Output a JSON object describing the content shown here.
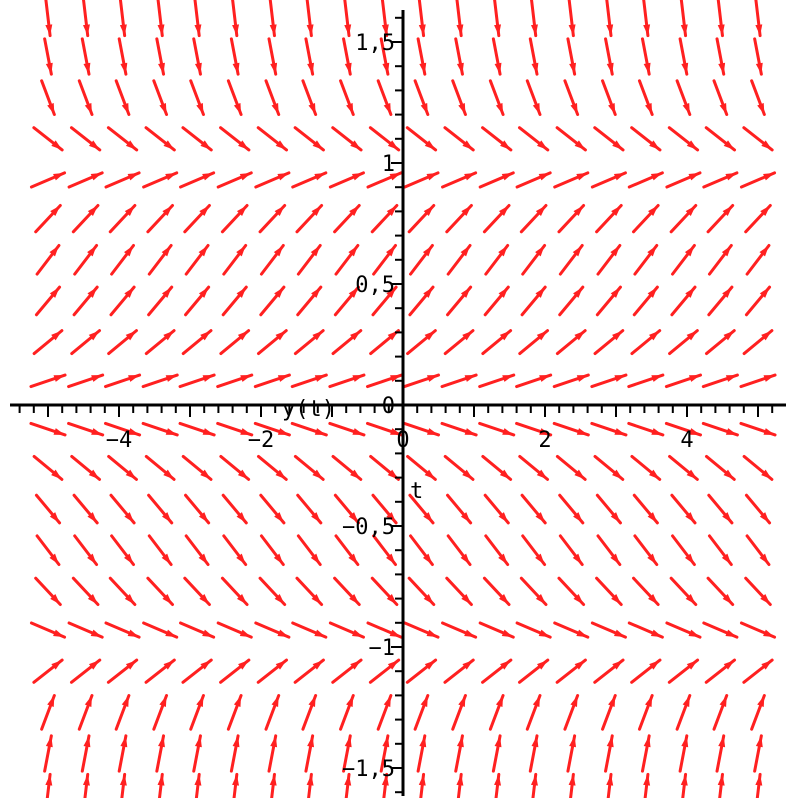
{
  "chart_data": {
    "type": "vector-field",
    "title": "",
    "xlabel": "t",
    "ylabel": "y(t)",
    "xlim": [
      -5.6,
      5.3
    ],
    "ylim": [
      -1.75,
      1.7
    ],
    "x_ticks": [
      {
        "value": -4,
        "label": "−4"
      },
      {
        "value": -2,
        "label": "−2"
      },
      {
        "value": 0,
        "label": "0"
      },
      {
        "value": 2,
        "label": "2"
      },
      {
        "value": 4,
        "label": "4"
      }
    ],
    "y_ticks": [
      {
        "value": 1.5,
        "label": "1,5"
      },
      {
        "value": 1,
        "label": "1"
      },
      {
        "value": 0.5,
        "label": "0,5"
      },
      {
        "value": 0,
        "label": "0"
      },
      {
        "value": -0.5,
        "label": "−0,5"
      },
      {
        "value": -1,
        "label": "−1"
      },
      {
        "value": -1.5,
        "label": "−1,5"
      }
    ],
    "grid": false,
    "arrow_color": "#ff2020",
    "axis_color": "#000000",
    "field": {
      "equation": "dy/dt = y - y^3",
      "t_values": [
        -5,
        -4.47,
        -3.95,
        -3.42,
        -2.9,
        -2.37,
        -1.84,
        -1.32,
        -0.79,
        -0.26,
        0.26,
        0.79,
        1.32,
        1.84,
        2.37,
        2.9,
        3.42,
        3.95,
        4.47,
        5
      ],
      "y_values": [
        1.6,
        1.44,
        1.27,
        1.1,
        0.93,
        0.77,
        0.6,
        0.43,
        0.26,
        0.1,
        -0.1,
        -0.26,
        -0.43,
        -0.6,
        -0.77,
        -0.93,
        -1.1,
        -1.27,
        -1.44,
        -1.6
      ]
    }
  }
}
